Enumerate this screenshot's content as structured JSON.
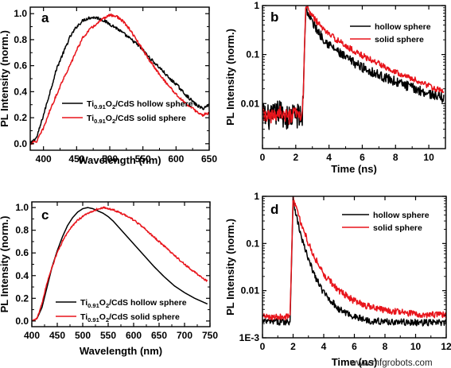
{
  "chart_data": [
    {
      "id": "a",
      "type": "line",
      "panel_label": "a",
      "xlabel": "Wavelength (nm)",
      "ylabel": "PL Intensity (norm.)",
      "xlim": [
        380,
        650
      ],
      "ylim": [
        -0.05,
        1.05
      ],
      "xticks": [
        400,
        450,
        500,
        550,
        600,
        650
      ],
      "yticks": [
        0.0,
        0.2,
        0.4,
        0.6,
        0.8,
        1.0
      ],
      "ytick_labels": [
        "0.0",
        "0.2",
        "0.4",
        "0.6",
        "0.8",
        "1.0"
      ],
      "yscale": "linear",
      "legend_position": "lower-center",
      "series": [
        {
          "name_parts": [
            "Ti",
            "0.91",
            "O",
            "2",
            "/CdS hollow sphere"
          ],
          "color": "#000000",
          "noise": 0.012,
          "x": [
            380,
            390,
            400,
            410,
            420,
            430,
            440,
            450,
            460,
            470,
            480,
            490,
            500,
            510,
            520,
            530,
            540,
            550,
            560,
            570,
            580,
            590,
            600,
            610,
            620,
            630,
            640,
            650
          ],
          "y": [
            0.0,
            0.05,
            0.22,
            0.4,
            0.58,
            0.7,
            0.82,
            0.9,
            0.95,
            0.97,
            0.97,
            0.95,
            0.92,
            0.89,
            0.85,
            0.81,
            0.77,
            0.72,
            0.66,
            0.61,
            0.56,
            0.5,
            0.46,
            0.4,
            0.35,
            0.3,
            0.27,
            0.3
          ]
        },
        {
          "name_parts": [
            "Ti",
            "0.91",
            "O",
            "2",
            "/CdS solid sphere"
          ],
          "color": "#e8141b",
          "noise": 0.01,
          "x": [
            380,
            390,
            400,
            410,
            420,
            430,
            440,
            450,
            460,
            470,
            480,
            490,
            500,
            510,
            520,
            530,
            540,
            550,
            560,
            570,
            580,
            590,
            600,
            610,
            620,
            630,
            640,
            650
          ],
          "y": [
            0.0,
            0.02,
            0.12,
            0.26,
            0.38,
            0.5,
            0.6,
            0.72,
            0.82,
            0.88,
            0.92,
            0.96,
            0.99,
            0.98,
            0.94,
            0.88,
            0.8,
            0.72,
            0.64,
            0.57,
            0.5,
            0.44,
            0.38,
            0.33,
            0.29,
            0.25,
            0.22,
            0.24
          ]
        }
      ]
    },
    {
      "id": "b",
      "type": "line",
      "panel_label": "b",
      "xlabel": "Time (ns)",
      "ylabel": "PL Intensity (norm.)",
      "xlim": [
        0,
        11
      ],
      "ylim": [
        0.0012,
        1.0
      ],
      "xticks": [
        0,
        2,
        4,
        6,
        8,
        10
      ],
      "yticks": [
        0.01,
        0.1,
        1
      ],
      "ytick_labels": [
        "0.01",
        "0.1",
        "1"
      ],
      "yscale": "log",
      "legend_position": "top-right",
      "series": [
        {
          "name": "hollow sphere",
          "color": "#000000",
          "noise_log": 0.1,
          "x": [
            0,
            0.5,
            1,
            1.5,
            2,
            2.4,
            2.6,
            3,
            3.5,
            4,
            5,
            6,
            7,
            8,
            9,
            10,
            10.9
          ],
          "y": [
            0.006,
            0.005,
            0.007,
            0.005,
            0.006,
            0.005,
            0.9,
            0.45,
            0.25,
            0.16,
            0.085,
            0.055,
            0.038,
            0.028,
            0.021,
            0.016,
            0.013
          ]
        },
        {
          "name": "solid sphere",
          "color": "#e8141b",
          "noise_log": 0.06,
          "x": [
            0,
            0.5,
            1,
            1.5,
            2,
            2.4,
            2.6,
            3,
            3.5,
            4,
            5,
            6,
            7,
            8,
            9,
            10,
            10.9
          ],
          "y": [
            0.006,
            0.005,
            0.007,
            0.005,
            0.006,
            0.005,
            0.97,
            0.62,
            0.38,
            0.26,
            0.15,
            0.095,
            0.065,
            0.045,
            0.032,
            0.023,
            0.017
          ]
        }
      ]
    },
    {
      "id": "c",
      "type": "line",
      "panel_label": "c",
      "xlabel": "Wavelength (nm)",
      "ylabel": "PL Intensity (norm.)",
      "xlim": [
        400,
        750
      ],
      "ylim": [
        -0.05,
        1.05
      ],
      "xticks": [
        400,
        450,
        500,
        550,
        600,
        650,
        700,
        750
      ],
      "yticks": [
        0.0,
        0.2,
        0.4,
        0.6,
        0.8,
        1.0
      ],
      "ytick_labels": [
        "0.0",
        "0.2",
        "0.4",
        "0.6",
        "0.8",
        "1.0"
      ],
      "yscale": "linear",
      "legend_position": "lower-right",
      "series": [
        {
          "name_parts": [
            "Ti",
            "0.91",
            "O",
            "2",
            "/CdS hollow sphere"
          ],
          "color": "#000000",
          "noise": 0.0,
          "x": [
            400,
            410,
            420,
            430,
            440,
            450,
            460,
            470,
            480,
            490,
            500,
            510,
            520,
            530,
            540,
            550,
            560,
            570,
            580,
            590,
            600,
            620,
            640,
            660,
            680,
            700,
            720,
            745
          ],
          "y": [
            0.0,
            0.02,
            0.12,
            0.3,
            0.48,
            0.62,
            0.74,
            0.84,
            0.91,
            0.96,
            0.99,
            1.0,
            0.99,
            0.97,
            0.95,
            0.92,
            0.88,
            0.83,
            0.78,
            0.73,
            0.68,
            0.58,
            0.48,
            0.39,
            0.31,
            0.25,
            0.2,
            0.15
          ]
        },
        {
          "name_parts": [
            "Ti",
            "0.91",
            "O",
            "2",
            "/CdS solid sphere"
          ],
          "color": "#e8141b",
          "noise": 0.008,
          "x": [
            400,
            410,
            420,
            430,
            440,
            450,
            460,
            470,
            480,
            490,
            500,
            510,
            520,
            530,
            540,
            550,
            560,
            570,
            580,
            590,
            600,
            620,
            640,
            660,
            680,
            700,
            720,
            745
          ],
          "y": [
            0.0,
            0.02,
            0.15,
            0.34,
            0.48,
            0.6,
            0.7,
            0.78,
            0.84,
            0.89,
            0.92,
            0.95,
            0.97,
            0.99,
            1.0,
            0.99,
            0.98,
            0.96,
            0.94,
            0.92,
            0.89,
            0.82,
            0.74,
            0.66,
            0.58,
            0.5,
            0.43,
            0.35
          ]
        }
      ]
    },
    {
      "id": "d",
      "type": "line",
      "panel_label": "d",
      "xlabel": "Time (ns)",
      "ylabel": "PL Intensity (norm.)",
      "xlim": [
        0,
        12
      ],
      "ylim": [
        0.001,
        1.0
      ],
      "xticks": [
        0,
        2,
        4,
        6,
        8,
        10,
        12
      ],
      "yticks": [
        0.001,
        0.01,
        0.1,
        1
      ],
      "ytick_labels": [
        "1E-3",
        "0.01",
        "0.1",
        "1"
      ],
      "yscale": "log",
      "legend_position": "top-right",
      "series": [
        {
          "name": "hollow sphere",
          "color": "#000000",
          "noise_log": 0.07,
          "x": [
            0,
            1,
            1.8,
            2.0,
            2.2,
            2.5,
            3,
            3.5,
            4,
            5,
            6,
            7,
            8,
            10,
            12
          ],
          "y": [
            0.0022,
            0.0022,
            0.0022,
            0.9,
            0.4,
            0.15,
            0.045,
            0.018,
            0.009,
            0.004,
            0.0028,
            0.0023,
            0.0022,
            0.0021,
            0.0021
          ]
        },
        {
          "name": "solid sphere",
          "color": "#e8141b",
          "noise_log": 0.07,
          "x": [
            0,
            1,
            1.8,
            2.0,
            2.2,
            2.5,
            3,
            3.5,
            4,
            5,
            6,
            7,
            8,
            10,
            12
          ],
          "y": [
            0.0028,
            0.0028,
            0.0028,
            0.95,
            0.55,
            0.28,
            0.1,
            0.045,
            0.022,
            0.01,
            0.006,
            0.0045,
            0.0038,
            0.0032,
            0.003
          ]
        }
      ]
    }
  ],
  "watermark": "www.mfgrobots.com"
}
